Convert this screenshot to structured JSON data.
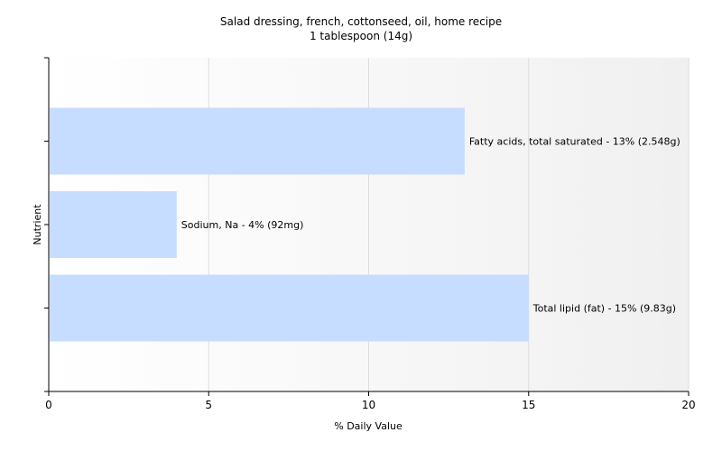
{
  "chart_data": {
    "type": "bar",
    "orientation": "horizontal",
    "title": "Salad dressing, french, cottonseed, oil, home recipe",
    "subtitle": "1 tablespoon (14g)",
    "xlabel": "% Daily Value",
    "ylabel": "Nutrient",
    "xlim": [
      0,
      20
    ],
    "xticks": [
      0,
      5,
      10,
      15,
      20
    ],
    "grid": true,
    "bar_color": "#c6ddff",
    "categories": [
      "Fatty acids, total saturated",
      "Sodium, Na",
      "Total lipid (fat)"
    ],
    "values": [
      13,
      4,
      15
    ],
    "labels": [
      "Fatty acids, total saturated - 13% (2.548g)",
      "Sodium, Na - 4% (92mg)",
      "Total lipid (fat) - 15% (9.83g)"
    ]
  }
}
